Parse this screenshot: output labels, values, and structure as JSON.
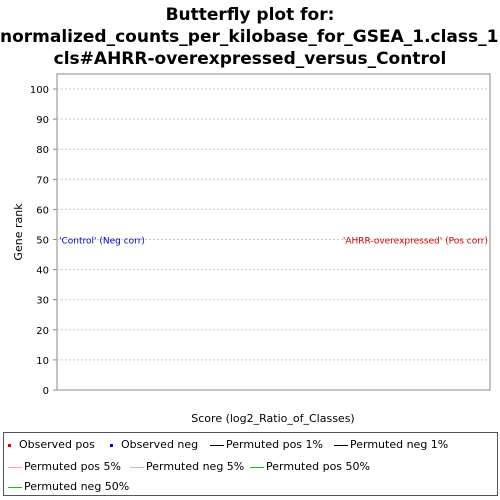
{
  "chart_data": {
    "type": "line",
    "title_lines": [
      "Butterfly plot for:",
      "normalized_counts_per_kilobase_for_GSEA_1.class_1.",
      "cls#AHRR-overexpressed_versus_Control"
    ],
    "xlabel": "Score (log2_Ratio_of_Classes)",
    "ylabel": "Gene rank",
    "ylim": [
      0,
      105
    ],
    "yticks": [
      "0",
      "10",
      "20",
      "30",
      "40",
      "50",
      "60",
      "70",
      "80",
      "90",
      "100"
    ],
    "grid": true,
    "annotations": [
      {
        "text": "'Control' (Neg corr)",
        "color": "#0000c0",
        "y": 50,
        "side": "left"
      },
      {
        "text": "'AHRR-overexpressed' (Pos corr)",
        "color": "#d00000",
        "y": 50,
        "side": "right"
      }
    ],
    "series": [
      {
        "name": "Observed pos",
        "style": "dot",
        "color": "#e00000",
        "values": []
      },
      {
        "name": "Observed neg",
        "style": "dot",
        "color": "#0000e0",
        "values": []
      },
      {
        "name": "Permuted pos 1%",
        "style": "line",
        "color": "#000000",
        "values": []
      },
      {
        "name": "Permuted neg 1%",
        "style": "line",
        "color": "#000000",
        "values": []
      },
      {
        "name": "Permuted pos 5%",
        "style": "line",
        "color": "#f4a6a6",
        "values": []
      },
      {
        "name": "Permuted neg 5%",
        "style": "line",
        "color": "#f4a6a6",
        "values": []
      },
      {
        "name": "Permuted pos 50%",
        "style": "line",
        "color": "#00cc00",
        "values": []
      },
      {
        "name": "Permuted neg 50%",
        "style": "line",
        "color": "#00cc00",
        "values": []
      }
    ],
    "legend_position": "bottom"
  }
}
